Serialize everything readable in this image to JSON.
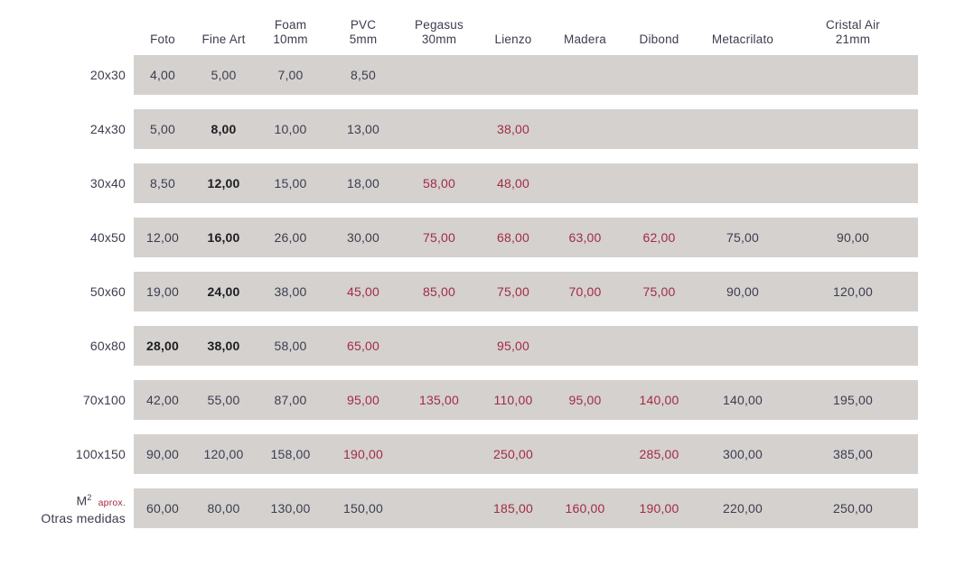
{
  "colors": {
    "stripe_bg": "#d4d1cf",
    "text_dark": "#3c3d4e",
    "text_bold": "#1d1d20",
    "text_red": "#a32b44",
    "page_bg": "#ffffff"
  },
  "chart_data": {
    "type": "table",
    "title": "",
    "legend": "red values indicate highlighted prices, bold values indicate emphasized prices, all prices in format 0,00",
    "columns": [
      {
        "line1": "Foto",
        "line2": ""
      },
      {
        "line1": "Fine Art",
        "line2": ""
      },
      {
        "line1": "Foam",
        "line2": "10mm"
      },
      {
        "line1": "PVC",
        "line2": "5mm"
      },
      {
        "line1": "Pegasus",
        "line2": "30mm"
      },
      {
        "line1": "Lienzo",
        "line2": ""
      },
      {
        "line1": "Madera",
        "line2": ""
      },
      {
        "line1": "Dibond",
        "line2": ""
      },
      {
        "line1": "Metacrilato",
        "line2": ""
      },
      {
        "line1": "Cristal Air",
        "line2": "21mm"
      }
    ],
    "rows": [
      {
        "label": "20x30",
        "cells": [
          {
            "v": "4,00",
            "style": "dark"
          },
          {
            "v": "5,00",
            "style": "dark"
          },
          {
            "v": "7,00",
            "style": "dark"
          },
          {
            "v": "8,50",
            "style": "dark"
          },
          {
            "v": "",
            "style": ""
          },
          {
            "v": "",
            "style": ""
          },
          {
            "v": "",
            "style": ""
          },
          {
            "v": "",
            "style": ""
          },
          {
            "v": "",
            "style": ""
          },
          {
            "v": "",
            "style": ""
          }
        ]
      },
      {
        "label": "24x30",
        "cells": [
          {
            "v": "5,00",
            "style": "dark"
          },
          {
            "v": "8,00",
            "style": "bold"
          },
          {
            "v": "10,00",
            "style": "dark"
          },
          {
            "v": "13,00",
            "style": "dark"
          },
          {
            "v": "",
            "style": ""
          },
          {
            "v": "38,00",
            "style": "red"
          },
          {
            "v": "",
            "style": ""
          },
          {
            "v": "",
            "style": ""
          },
          {
            "v": "",
            "style": ""
          },
          {
            "v": "",
            "style": ""
          }
        ]
      },
      {
        "label": "30x40",
        "cells": [
          {
            "v": "8,50",
            "style": "dark"
          },
          {
            "v": "12,00",
            "style": "bold"
          },
          {
            "v": "15,00",
            "style": "dark"
          },
          {
            "v": "18,00",
            "style": "dark"
          },
          {
            "v": "58,00",
            "style": "red"
          },
          {
            "v": "48,00",
            "style": "red"
          },
          {
            "v": "",
            "style": ""
          },
          {
            "v": "",
            "style": ""
          },
          {
            "v": "",
            "style": ""
          },
          {
            "v": "",
            "style": ""
          }
        ]
      },
      {
        "label": "40x50",
        "cells": [
          {
            "v": "12,00",
            "style": "dark"
          },
          {
            "v": "16,00",
            "style": "bold"
          },
          {
            "v": "26,00",
            "style": "dark"
          },
          {
            "v": "30,00",
            "style": "dark"
          },
          {
            "v": "75,00",
            "style": "red"
          },
          {
            "v": "68,00",
            "style": "red"
          },
          {
            "v": "63,00",
            "style": "red"
          },
          {
            "v": "62,00",
            "style": "red"
          },
          {
            "v": "75,00",
            "style": "dark"
          },
          {
            "v": "90,00",
            "style": "dark"
          }
        ]
      },
      {
        "label": "50x60",
        "cells": [
          {
            "v": "19,00",
            "style": "dark"
          },
          {
            "v": "24,00",
            "style": "bold"
          },
          {
            "v": "38,00",
            "style": "dark"
          },
          {
            "v": "45,00",
            "style": "red"
          },
          {
            "v": "85,00",
            "style": "red"
          },
          {
            "v": "75,00",
            "style": "red"
          },
          {
            "v": "70,00",
            "style": "red"
          },
          {
            "v": "75,00",
            "style": "red"
          },
          {
            "v": "90,00",
            "style": "dark"
          },
          {
            "v": "120,00",
            "style": "dark"
          }
        ]
      },
      {
        "label": "60x80",
        "cells": [
          {
            "v": "28,00",
            "style": "bold"
          },
          {
            "v": "38,00",
            "style": "bold"
          },
          {
            "v": "58,00",
            "style": "dark"
          },
          {
            "v": "65,00",
            "style": "red"
          },
          {
            "v": "",
            "style": ""
          },
          {
            "v": "95,00",
            "style": "red"
          },
          {
            "v": "",
            "style": ""
          },
          {
            "v": "",
            "style": ""
          },
          {
            "v": "",
            "style": ""
          },
          {
            "v": "",
            "style": ""
          }
        ]
      },
      {
        "label": "70x100",
        "cells": [
          {
            "v": "42,00",
            "style": "dark"
          },
          {
            "v": "55,00",
            "style": "dark"
          },
          {
            "v": "87,00",
            "style": "dark"
          },
          {
            "v": "95,00",
            "style": "red"
          },
          {
            "v": "135,00",
            "style": "red"
          },
          {
            "v": "110,00",
            "style": "red"
          },
          {
            "v": "95,00",
            "style": "red"
          },
          {
            "v": "140,00",
            "style": "red"
          },
          {
            "v": "140,00",
            "style": "dark"
          },
          {
            "v": "195,00",
            "style": "dark"
          }
        ]
      },
      {
        "label": "100x150",
        "cells": [
          {
            "v": "90,00",
            "style": "dark"
          },
          {
            "v": "120,00",
            "style": "dark"
          },
          {
            "v": "158,00",
            "style": "dark"
          },
          {
            "v": "190,00",
            "style": "red"
          },
          {
            "v": "",
            "style": ""
          },
          {
            "v": "250,00",
            "style": "red"
          },
          {
            "v": "",
            "style": ""
          },
          {
            "v": "285,00",
            "style": "red"
          },
          {
            "v": "300,00",
            "style": "dark"
          },
          {
            "v": "385,00",
            "style": "dark"
          }
        ]
      },
      {
        "label_main": "M",
        "label_sup": "2",
        "label_note": "aprox.",
        "label_line2": "Otras medidas",
        "cells": [
          {
            "v": "60,00",
            "style": "dark"
          },
          {
            "v": "80,00",
            "style": "dark"
          },
          {
            "v": "130,00",
            "style": "dark"
          },
          {
            "v": "150,00",
            "style": "dark"
          },
          {
            "v": "",
            "style": ""
          },
          {
            "v": "185,00",
            "style": "red"
          },
          {
            "v": "160,00",
            "style": "red"
          },
          {
            "v": "190,00",
            "style": "red"
          },
          {
            "v": "220,00",
            "style": "dark"
          },
          {
            "v": "250,00",
            "style": "dark"
          }
        ]
      }
    ]
  }
}
